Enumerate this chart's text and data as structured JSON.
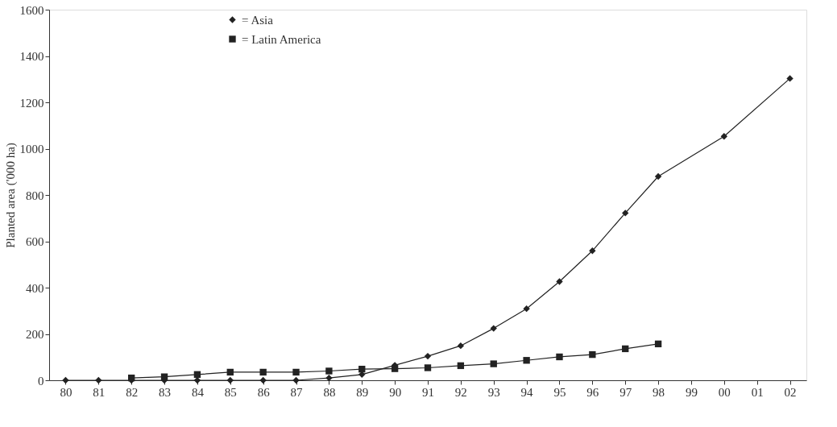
{
  "chart_data": {
    "type": "line",
    "ylabel": "Planted area ('000 ha)",
    "categories": [
      "80",
      "81",
      "82",
      "83",
      "84",
      "85",
      "86",
      "87",
      "88",
      "89",
      "90",
      "91",
      "92",
      "93",
      "94",
      "95",
      "96",
      "97",
      "98",
      "99",
      "00",
      "01",
      "02"
    ],
    "series": [
      {
        "name": "= Asia",
        "color": "#222222",
        "marker": "diamond",
        "values": [
          0,
          0,
          0,
          0,
          0,
          0,
          0,
          0,
          10,
          25,
          65,
          104,
          149,
          224,
          309,
          426,
          559,
          722,
          880,
          null,
          1053,
          null,
          1303
        ]
      },
      {
        "name": "= Latin America",
        "color": "#222222",
        "marker": "square",
        "values": [
          null,
          null,
          10,
          15,
          25,
          35,
          35,
          35,
          40,
          48,
          50,
          54,
          63,
          71,
          86,
          101,
          111,
          136,
          157,
          null,
          null,
          null,
          null
        ]
      }
    ],
    "ylim": [
      0,
      1600
    ],
    "yticks": [
      0,
      200,
      400,
      600,
      800,
      1000,
      1200,
      1400,
      1600
    ],
    "grid": false,
    "legend": "top left",
    "line_style": "solid"
  }
}
